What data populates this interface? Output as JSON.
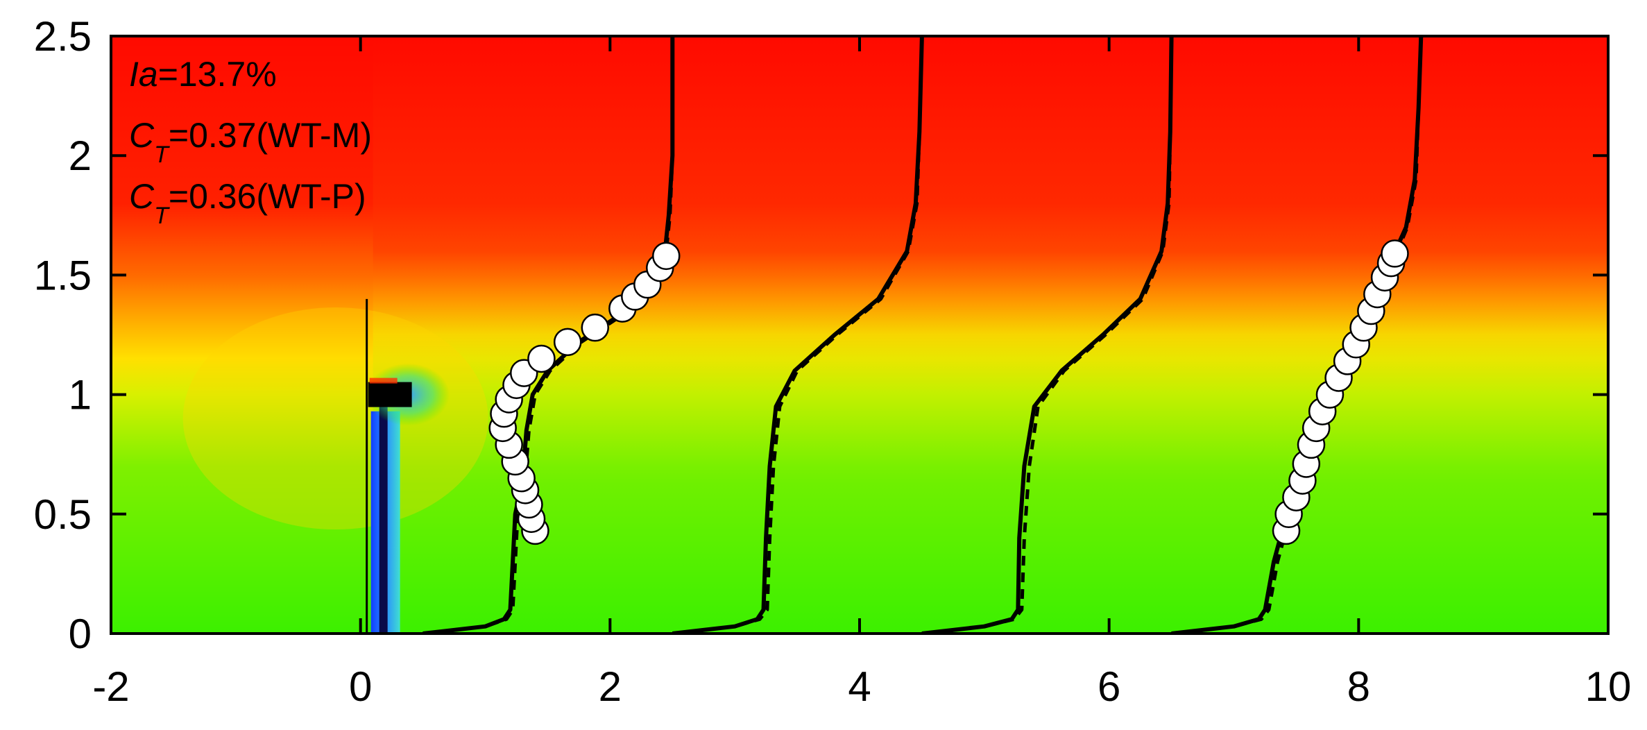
{
  "chart_data": {
    "type": "line",
    "title": "",
    "xlabel": "",
    "ylabel": "",
    "xlim": [
      -2,
      10
    ],
    "ylim": [
      0,
      2.5
    ],
    "xticks": [
      -2,
      0,
      2,
      4,
      6,
      8,
      10
    ],
    "yticks": [
      0,
      0.5,
      1,
      1.5,
      2,
      2.5
    ],
    "xtick_labels": [
      "-2",
      "0",
      "2",
      "4",
      "6",
      "8",
      "10"
    ],
    "ytick_labels": [
      "0",
      "0.5",
      "1",
      "1.5",
      "2",
      "2.5"
    ],
    "grid": false,
    "background": "contour map of mean velocity: green (low) near ground, yellow transition, red (high) aloft; blue wake region behind turbine tower",
    "colors": {
      "high": "#ff0a00",
      "mid": "#ffd800",
      "low": "#3cf000",
      "wake": "#1e64ff"
    },
    "annotations": {
      "ia_label": "Ia",
      "ia_value": "=13.7%",
      "ct1_label": "C",
      "ct1_sub": "T",
      "ct1_value": "=0.37(WT-M)",
      "ct2_label": "C",
      "ct2_sub": "T",
      "ct2_value": "=0.36(WT-P)"
    },
    "turbine": {
      "tower_x": 0.05,
      "hub_height": 1.0,
      "rotor_top": 1.4,
      "nacelle_length": 0.35
    },
    "profiles": [
      {
        "station": 0.5,
        "solid": [
          [
            0.5,
            0
          ],
          [
            1.0,
            0.03
          ],
          [
            1.15,
            0.06
          ],
          [
            1.2,
            0.1
          ],
          [
            1.22,
            0.3
          ],
          [
            1.24,
            0.5
          ],
          [
            1.3,
            0.65
          ],
          [
            1.33,
            0.85
          ],
          [
            1.38,
            1.0
          ],
          [
            1.5,
            1.1
          ],
          [
            1.75,
            1.22
          ],
          [
            2.1,
            1.34
          ],
          [
            2.35,
            1.47
          ],
          [
            2.44,
            1.6
          ],
          [
            2.47,
            1.75
          ],
          [
            2.5,
            2.0
          ],
          [
            2.5,
            2.5
          ]
        ],
        "dashed": [
          [
            0.5,
            0
          ],
          [
            1.0,
            0.03
          ],
          [
            1.17,
            0.06
          ],
          [
            1.22,
            0.1
          ],
          [
            1.24,
            0.3
          ],
          [
            1.26,
            0.5
          ],
          [
            1.32,
            0.65
          ],
          [
            1.35,
            0.85
          ],
          [
            1.4,
            1.0
          ],
          [
            1.52,
            1.1
          ],
          [
            1.77,
            1.22
          ],
          [
            2.12,
            1.34
          ],
          [
            2.36,
            1.47
          ],
          [
            2.45,
            1.6
          ],
          [
            2.48,
            1.75
          ],
          [
            2.5,
            2.0
          ],
          [
            2.5,
            2.5
          ]
        ],
        "markers": [
          [
            1.4,
            0.43
          ],
          [
            1.37,
            0.48
          ],
          [
            1.35,
            0.54
          ],
          [
            1.32,
            0.6
          ],
          [
            1.29,
            0.65
          ],
          [
            1.24,
            0.72
          ],
          [
            1.19,
            0.79
          ],
          [
            1.14,
            0.86
          ],
          [
            1.15,
            0.92
          ],
          [
            1.19,
            0.98
          ],
          [
            1.25,
            1.04
          ],
          [
            1.31,
            1.09
          ],
          [
            1.45,
            1.15
          ],
          [
            1.66,
            1.22
          ],
          [
            1.88,
            1.28
          ],
          [
            2.1,
            1.36
          ],
          [
            2.2,
            1.41
          ],
          [
            2.3,
            1.46
          ],
          [
            2.4,
            1.53
          ],
          [
            2.45,
            1.58
          ]
        ]
      },
      {
        "station": 2.5,
        "solid": [
          [
            2.5,
            0
          ],
          [
            3.0,
            0.03
          ],
          [
            3.18,
            0.06
          ],
          [
            3.23,
            0.1
          ],
          [
            3.25,
            0.4
          ],
          [
            3.28,
            0.7
          ],
          [
            3.33,
            0.95
          ],
          [
            3.48,
            1.1
          ],
          [
            3.8,
            1.25
          ],
          [
            4.15,
            1.4
          ],
          [
            4.38,
            1.6
          ],
          [
            4.45,
            1.8
          ],
          [
            4.48,
            2.1
          ],
          [
            4.5,
            2.5
          ]
        ],
        "dashed": [
          [
            2.5,
            0
          ],
          [
            3.0,
            0.03
          ],
          [
            3.2,
            0.06
          ],
          [
            3.26,
            0.1
          ],
          [
            3.28,
            0.4
          ],
          [
            3.31,
            0.7
          ],
          [
            3.36,
            0.95
          ],
          [
            3.5,
            1.1
          ],
          [
            3.82,
            1.25
          ],
          [
            4.17,
            1.4
          ],
          [
            4.39,
            1.6
          ],
          [
            4.46,
            1.8
          ],
          [
            4.48,
            2.1
          ],
          [
            4.5,
            2.5
          ]
        ],
        "markers": []
      },
      {
        "station": 4.5,
        "solid": [
          [
            4.5,
            0
          ],
          [
            5.0,
            0.03
          ],
          [
            5.22,
            0.06
          ],
          [
            5.27,
            0.1
          ],
          [
            5.28,
            0.4
          ],
          [
            5.32,
            0.7
          ],
          [
            5.4,
            0.95
          ],
          [
            5.62,
            1.1
          ],
          [
            5.95,
            1.25
          ],
          [
            6.25,
            1.4
          ],
          [
            6.42,
            1.6
          ],
          [
            6.47,
            1.8
          ],
          [
            6.49,
            2.1
          ],
          [
            6.5,
            2.5
          ]
        ],
        "dashed": [
          [
            4.5,
            0
          ],
          [
            5.0,
            0.03
          ],
          [
            5.24,
            0.06
          ],
          [
            5.3,
            0.1
          ],
          [
            5.32,
            0.4
          ],
          [
            5.36,
            0.7
          ],
          [
            5.43,
            0.95
          ],
          [
            5.64,
            1.1
          ],
          [
            5.97,
            1.25
          ],
          [
            6.27,
            1.4
          ],
          [
            6.43,
            1.6
          ],
          [
            6.48,
            1.8
          ],
          [
            6.49,
            2.1
          ],
          [
            6.5,
            2.5
          ]
        ],
        "markers": []
      },
      {
        "station": 6.5,
        "solid": [
          [
            6.5,
            0
          ],
          [
            7.0,
            0.03
          ],
          [
            7.2,
            0.06
          ],
          [
            7.25,
            0.1
          ],
          [
            7.32,
            0.3
          ],
          [
            7.45,
            0.55
          ],
          [
            7.62,
            0.8
          ],
          [
            7.82,
            1.05
          ],
          [
            8.05,
            1.3
          ],
          [
            8.25,
            1.55
          ],
          [
            8.38,
            1.7
          ],
          [
            8.45,
            1.9
          ],
          [
            8.48,
            2.2
          ],
          [
            8.5,
            2.5
          ]
        ],
        "dashed": [
          [
            6.5,
            0
          ],
          [
            7.0,
            0.03
          ],
          [
            7.22,
            0.06
          ],
          [
            7.28,
            0.1
          ],
          [
            7.35,
            0.3
          ],
          [
            7.48,
            0.55
          ],
          [
            7.65,
            0.8
          ],
          [
            7.85,
            1.05
          ],
          [
            8.07,
            1.3
          ],
          [
            8.27,
            1.55
          ],
          [
            8.39,
            1.7
          ],
          [
            8.46,
            1.9
          ],
          [
            8.48,
            2.2
          ],
          [
            8.5,
            2.5
          ]
        ],
        "markers": [
          [
            7.42,
            0.43
          ],
          [
            7.44,
            0.5
          ],
          [
            7.5,
            0.57
          ],
          [
            7.55,
            0.64
          ],
          [
            7.58,
            0.71
          ],
          [
            7.62,
            0.79
          ],
          [
            7.66,
            0.86
          ],
          [
            7.71,
            0.93
          ],
          [
            7.77,
            1.0
          ],
          [
            7.84,
            1.07
          ],
          [
            7.91,
            1.14
          ],
          [
            7.98,
            1.21
          ],
          [
            8.04,
            1.28
          ],
          [
            8.1,
            1.35
          ],
          [
            8.15,
            1.42
          ],
          [
            8.21,
            1.49
          ],
          [
            8.26,
            1.55
          ],
          [
            8.29,
            1.59
          ]
        ]
      }
    ]
  }
}
